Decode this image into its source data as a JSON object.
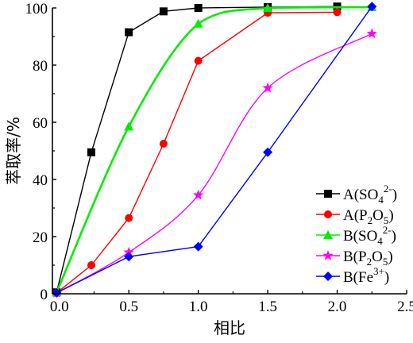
{
  "chart_data": {
    "type": "line",
    "xlabel": "相比",
    "ylabel": "萃取率/%",
    "xlim": [
      -0.05,
      2.5
    ],
    "ylim": [
      0,
      100
    ],
    "x_ticks": [
      "0.0",
      "0.5",
      "1.0",
      "1.5",
      "2.0",
      "2.5"
    ],
    "y_ticks": [
      "0",
      "20",
      "40",
      "60",
      "80",
      "100"
    ],
    "legend_position": "right",
    "series": [
      {
        "name_main": "A(SO",
        "name_sub": "4",
        "name_sup": "2-",
        "name_tail": ")",
        "color": "#000000",
        "marker": "square",
        "smooth": false,
        "x": [
          -0.02,
          0.23,
          0.5,
          0.75,
          1.0,
          1.5,
          2.0
        ],
        "y": [
          0.5,
          49.5,
          91.5,
          98.8,
          100.0,
          100.3,
          100.5
        ]
      },
      {
        "name_main": "A(P",
        "name_sub": "2",
        "name_mid": "O",
        "name_sub2": "5",
        "name_tail": ")",
        "color": "#ff0000",
        "marker": "circle",
        "smooth": false,
        "x": [
          -0.02,
          0.23,
          0.5,
          0.75,
          1.0,
          1.5,
          2.0
        ],
        "y": [
          0.3,
          10.0,
          26.5,
          52.5,
          81.5,
          98.3,
          98.5
        ]
      },
      {
        "name_main": "B(SO",
        "name_sub": "4",
        "name_sup": "2-",
        "name_tail": ")",
        "color": "#00ee00",
        "marker": "triangle",
        "smooth": true,
        "x": [
          -0.02,
          0.5,
          1.0,
          1.5,
          2.25
        ],
        "y": [
          0.5,
          58.5,
          94.5,
          100.0,
          100.3
        ]
      },
      {
        "name_main": "B(P",
        "name_sub": "2",
        "name_mid": "O",
        "name_sub2": "5",
        "name_tail": ")",
        "color": "#ff00ff",
        "marker": "star",
        "smooth": true,
        "x": [
          -0.02,
          0.5,
          1.0,
          1.5,
          2.25
        ],
        "y": [
          0.3,
          14.5,
          34.5,
          72.0,
          91.0
        ]
      },
      {
        "name_main": "B(Fe",
        "name_sup": "3+",
        "name_tail": ")",
        "color": "#0000ff",
        "marker": "diamond",
        "smooth": false,
        "x": [
          -0.02,
          0.5,
          1.0,
          1.5,
          2.25
        ],
        "y": [
          0.3,
          13.0,
          16.5,
          49.5,
          100.5
        ]
      }
    ]
  }
}
